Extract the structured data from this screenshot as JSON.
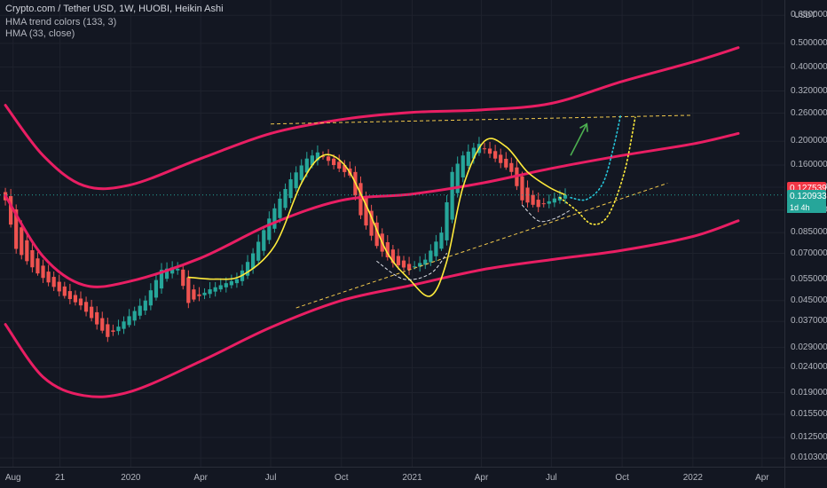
{
  "header": {
    "title": "Crypto.com / Tether USD, 1W, HUOBI, Heikin Ashi",
    "indicator_1": "HMA trend colors (133, 3)",
    "indicator_2": "HMA (33, close)"
  },
  "colors": {
    "background": "#131722",
    "up_candle": "#26a69a",
    "down_candle": "#ef5350",
    "channel": "#e91e63",
    "hma": "#ffeb3b",
    "trendline": "#f2c94c",
    "arrow": "#4caf50",
    "projection_cyan": "#26c6da",
    "projection_yellow": "#ffeb3b",
    "price_label_red": "#f23645",
    "price_label_green": "#26a69a"
  },
  "chart_data": {
    "type": "candlestick",
    "symbol": "Crypto.com / Tether USD",
    "interval": "1W",
    "exchange": "HUOBI",
    "style": "Heikin Ashi",
    "y_scale": "log",
    "y_unit": "USDT",
    "ylim": [
      0.0095,
      0.75
    ],
    "xlim": [
      "2019-07-15",
      "2022-04-30"
    ],
    "x_ticks": [
      {
        "date": "2019-08-01",
        "label": "Aug"
      },
      {
        "date": "2019-10-01",
        "label": "21"
      },
      {
        "date": "2020-01-01",
        "label": "2020"
      },
      {
        "date": "2020-04-01",
        "label": "Apr"
      },
      {
        "date": "2020-07-01",
        "label": "Jul"
      },
      {
        "date": "2020-10-01",
        "label": "Oct"
      },
      {
        "date": "2021-01-01",
        "label": "2021"
      },
      {
        "date": "2021-04-01",
        "label": "Apr"
      },
      {
        "date": "2021-07-01",
        "label": "Jul"
      },
      {
        "date": "2021-10-01",
        "label": "Oct"
      },
      {
        "date": "2022-01-01",
        "label": "2022"
      },
      {
        "date": "2022-04-01",
        "label": "Apr"
      }
    ],
    "y_ticks": [
      {
        "value": 0.8,
        "label": "0.800000"
      },
      {
        "value": 0.65,
        "label": "0.650000"
      },
      {
        "value": 0.5,
        "label": "0.500000"
      },
      {
        "value": 0.4,
        "label": "0.400000"
      },
      {
        "value": 0.32,
        "label": "0.320000"
      },
      {
        "value": 0.26,
        "label": "0.260000"
      },
      {
        "value": 0.2,
        "label": "0.200000"
      },
      {
        "value": 0.16,
        "label": "0.160000"
      },
      {
        "value": 0.13,
        "label": "0.130000"
      },
      {
        "value": 0.105,
        "label": "0.105000"
      },
      {
        "value": 0.085,
        "label": "0.085000"
      },
      {
        "value": 0.07,
        "label": "0.070000"
      },
      {
        "value": 0.055,
        "label": "0.055000"
      },
      {
        "value": 0.045,
        "label": "0.045000"
      },
      {
        "value": 0.037,
        "label": "0.037000"
      },
      {
        "value": 0.029,
        "label": "0.029000"
      },
      {
        "value": 0.024,
        "label": "0.024000"
      },
      {
        "value": 0.019,
        "label": "0.019000"
      },
      {
        "value": 0.0155,
        "label": "0.015500"
      },
      {
        "value": 0.0125,
        "label": "0.012500"
      },
      {
        "value": 0.0103,
        "label": "0.010300"
      }
    ],
    "price_labels": [
      {
        "value": 0.127539,
        "text": "0.127539",
        "color": "#f23645"
      },
      {
        "value": 0.120933,
        "text": "0.120933",
        "color": "#26a69a",
        "countdown": "1d 4h"
      }
    ],
    "price_anchors": [
      [
        "2019-07-22",
        0.115
      ],
      [
        "2019-08-05",
        0.073
      ],
      [
        "2019-09-02",
        0.058
      ],
      [
        "2019-10-07",
        0.047
      ],
      [
        "2019-10-28",
        0.043
      ],
      [
        "2019-11-18",
        0.036
      ],
      [
        "2019-12-02",
        0.032
      ],
      [
        "2019-12-23",
        0.037
      ],
      [
        "2020-01-20",
        0.045
      ],
      [
        "2020-02-10",
        0.06
      ],
      [
        "2020-03-01",
        0.062
      ],
      [
        "2020-03-16",
        0.044
      ],
      [
        "2020-04-13",
        0.05
      ],
      [
        "2020-05-18",
        0.055
      ],
      [
        "2020-06-08",
        0.07
      ],
      [
        "2020-07-01",
        0.1
      ],
      [
        "2020-07-27",
        0.14
      ],
      [
        "2020-08-17",
        0.17
      ],
      [
        "2020-08-31",
        0.18
      ],
      [
        "2020-09-21",
        0.16
      ],
      [
        "2020-10-12",
        0.145
      ],
      [
        "2020-10-26",
        0.1
      ],
      [
        "2020-11-16",
        0.075
      ],
      [
        "2020-12-07",
        0.064
      ],
      [
        "2020-12-28",
        0.06
      ],
      [
        "2021-01-18",
        0.066
      ],
      [
        "2021-02-08",
        0.085
      ],
      [
        "2021-02-22",
        0.15
      ],
      [
        "2021-03-08",
        0.175
      ],
      [
        "2021-03-29",
        0.195
      ],
      [
        "2021-04-19",
        0.17
      ],
      [
        "2021-05-10",
        0.15
      ],
      [
        "2021-05-24",
        0.115
      ],
      [
        "2021-06-14",
        0.108
      ],
      [
        "2021-07-05",
        0.117
      ],
      [
        "2021-07-19",
        0.121
      ]
    ],
    "series": [
      {
        "kind": "band",
        "style": "upper-channel",
        "points": [
          [
            "2019-07-22",
            0.28
          ],
          [
            "2019-09-09",
            0.175
          ],
          [
            "2019-11-01",
            0.132
          ],
          [
            "2020-01-01",
            0.133
          ],
          [
            "2020-04-01",
            0.17
          ],
          [
            "2020-07-01",
            0.215
          ],
          [
            "2020-10-01",
            0.245
          ],
          [
            "2021-01-01",
            0.262
          ],
          [
            "2021-04-01",
            0.268
          ],
          [
            "2021-07-01",
            0.285
          ],
          [
            "2021-10-01",
            0.35
          ],
          [
            "2022-01-01",
            0.42
          ],
          [
            "2022-03-01",
            0.48
          ]
        ]
      },
      {
        "kind": "band",
        "style": "middle-channel",
        "points": [
          [
            "2019-07-22",
            0.12
          ],
          [
            "2019-09-09",
            0.068
          ],
          [
            "2019-11-01",
            0.052
          ],
          [
            "2020-01-01",
            0.054
          ],
          [
            "2020-04-01",
            0.067
          ],
          [
            "2020-07-01",
            0.092
          ],
          [
            "2020-10-01",
            0.115
          ],
          [
            "2021-01-01",
            0.122
          ],
          [
            "2021-04-01",
            0.135
          ],
          [
            "2021-07-01",
            0.155
          ],
          [
            "2021-10-01",
            0.175
          ],
          [
            "2022-01-01",
            0.195
          ],
          [
            "2022-03-01",
            0.215
          ]
        ]
      },
      {
        "kind": "band",
        "style": "lower-channel",
        "points": [
          [
            "2019-07-22",
            0.036
          ],
          [
            "2019-09-09",
            0.022
          ],
          [
            "2019-11-01",
            0.0185
          ],
          [
            "2020-01-01",
            0.0192
          ],
          [
            "2020-04-01",
            0.0255
          ],
          [
            "2020-07-01",
            0.035
          ],
          [
            "2020-10-01",
            0.045
          ],
          [
            "2021-01-01",
            0.052
          ],
          [
            "2021-04-01",
            0.06
          ],
          [
            "2021-07-01",
            0.066
          ],
          [
            "2021-10-01",
            0.072
          ],
          [
            "2022-01-01",
            0.082
          ],
          [
            "2022-03-01",
            0.095
          ]
        ]
      },
      {
        "kind": "hma",
        "style": "hma-33",
        "points": [
          [
            "2020-03-16",
            0.056
          ],
          [
            "2020-04-20",
            0.055
          ],
          [
            "2020-05-25",
            0.057
          ],
          [
            "2020-07-06",
            0.075
          ],
          [
            "2020-08-10",
            0.135
          ],
          [
            "2020-09-07",
            0.175
          ],
          [
            "2020-10-05",
            0.16
          ],
          [
            "2020-11-02",
            0.11
          ],
          [
            "2020-11-30",
            0.07
          ],
          [
            "2020-12-28",
            0.055
          ],
          [
            "2021-01-25",
            0.047
          ],
          [
            "2021-02-15",
            0.065
          ],
          [
            "2021-03-08",
            0.13
          ],
          [
            "2021-04-05",
            0.2
          ],
          [
            "2021-05-03",
            0.19
          ],
          [
            "2021-05-31",
            0.15
          ],
          [
            "2021-06-28",
            0.13
          ],
          [
            "2021-07-19",
            0.121
          ]
        ]
      },
      {
        "kind": "trendline",
        "style": "resistance",
        "points": [
          [
            "2020-07-01",
            0.235
          ],
          [
            "2022-01-01",
            0.255
          ]
        ]
      },
      {
        "kind": "trendline",
        "style": "rising-support",
        "points": [
          [
            "2020-08-03",
            0.042
          ],
          [
            "2021-11-29",
            0.135
          ]
        ]
      },
      {
        "kind": "arc",
        "style": "curve-dec-2020",
        "points": [
          [
            "2020-11-16",
            0.065
          ],
          [
            "2020-12-21",
            0.055
          ],
          [
            "2021-01-25",
            0.058
          ],
          [
            "2021-02-15",
            0.07
          ]
        ]
      },
      {
        "kind": "arc",
        "style": "curve-jun-2021",
        "points": [
          [
            "2021-05-24",
            0.11
          ],
          [
            "2021-06-14",
            0.095
          ],
          [
            "2021-07-05",
            0.097
          ],
          [
            "2021-07-26",
            0.105
          ]
        ]
      },
      {
        "kind": "projection",
        "style": "projection-cyan",
        "points": [
          [
            "2021-07-26",
            0.118
          ],
          [
            "2021-08-16",
            0.116
          ],
          [
            "2021-09-06",
            0.135
          ],
          [
            "2021-09-20",
            0.19
          ],
          [
            "2021-09-29",
            0.255
          ]
        ]
      },
      {
        "kind": "projection",
        "style": "projection-yellow",
        "points": [
          [
            "2021-07-12",
            0.118
          ],
          [
            "2021-08-02",
            0.105
          ],
          [
            "2021-08-23",
            0.092
          ],
          [
            "2021-09-13",
            0.1
          ],
          [
            "2021-10-04",
            0.15
          ],
          [
            "2021-10-18",
            0.25
          ]
        ]
      },
      {
        "kind": "arrow",
        "style": "arrow-up",
        "points": [
          [
            "2021-07-26",
            0.175
          ],
          [
            "2021-08-16",
            0.235
          ]
        ]
      }
    ]
  }
}
